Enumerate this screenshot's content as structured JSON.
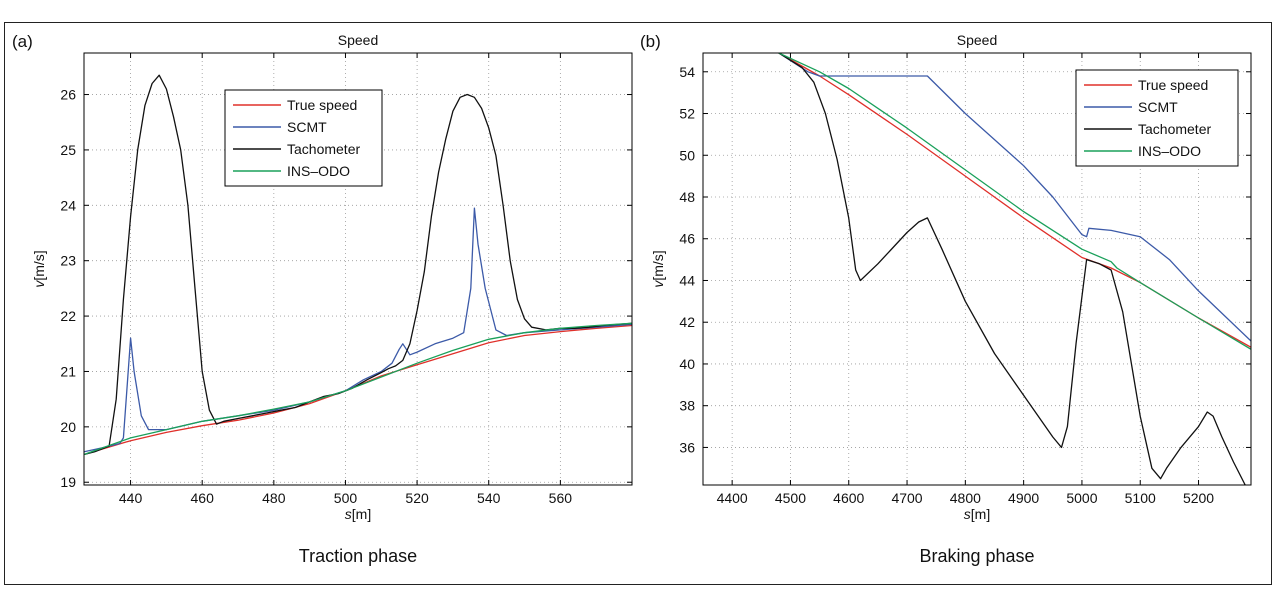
{
  "colors": {
    "true_speed": "#e0302a",
    "scmt": "#3c5aa8",
    "tachometer": "#111111",
    "ins_odo": "#1aa05a"
  },
  "chart_data": [
    {
      "type": "line",
      "panel_label": "(a)",
      "title": "Speed",
      "xlabel_var": "s",
      "xlabel_unit": "[m]",
      "ylabel_var": "v",
      "ylabel_unit": "[m/s]",
      "caption": "Traction phase",
      "xlim": [
        427,
        580
      ],
      "ylim": [
        18.95,
        26.75
      ],
      "xticks": [
        440,
        460,
        480,
        500,
        520,
        540,
        560
      ],
      "yticks": [
        19,
        20,
        21,
        22,
        23,
        24,
        25,
        26
      ],
      "grid": true,
      "legend_position": "top-center",
      "series": [
        {
          "name": "True speed",
          "color_key": "true_speed",
          "x": [
            427,
            440,
            450,
            460,
            470,
            480,
            490,
            500,
            510,
            520,
            530,
            540,
            550,
            560,
            570,
            580
          ],
          "y": [
            19.5,
            19.75,
            19.9,
            20.02,
            20.12,
            20.25,
            20.42,
            20.65,
            20.92,
            21.12,
            21.32,
            21.52,
            21.65,
            21.72,
            21.78,
            21.83
          ]
        },
        {
          "name": "SCMT",
          "color_key": "scmt",
          "x": [
            427,
            432,
            437,
            438,
            440,
            441,
            443,
            445,
            450,
            460,
            470,
            480,
            490,
            500,
            505,
            510,
            513,
            515,
            516,
            518,
            520,
            525,
            530,
            533,
            535,
            536,
            537,
            539,
            542,
            545,
            550,
            560,
            570,
            580
          ],
          "y": [
            19.55,
            19.62,
            19.7,
            19.8,
            21.6,
            21.0,
            20.2,
            19.95,
            19.95,
            20.1,
            20.2,
            20.3,
            20.45,
            20.65,
            20.85,
            21.0,
            21.15,
            21.4,
            21.5,
            21.3,
            21.35,
            21.5,
            21.6,
            21.7,
            22.5,
            23.95,
            23.3,
            22.5,
            21.75,
            21.65,
            21.7,
            21.75,
            21.8,
            21.85
          ]
        },
        {
          "name": "Tachometer",
          "color_key": "tachometer",
          "x": [
            427,
            430,
            434,
            436,
            438,
            440,
            442,
            444,
            446,
            448,
            450,
            452,
            454,
            456,
            458,
            460,
            462,
            464,
            466,
            470,
            474,
            478,
            482,
            486,
            490,
            494,
            498,
            502,
            506,
            510,
            512,
            514,
            516,
            518,
            520,
            522,
            524,
            526,
            528,
            530,
            532,
            534,
            536,
            538,
            540,
            542,
            544,
            546,
            548,
            550,
            552,
            556,
            560,
            564,
            568,
            572,
            576,
            580
          ],
          "y": [
            19.5,
            19.55,
            19.65,
            20.5,
            22.3,
            23.8,
            25.0,
            25.8,
            26.2,
            26.35,
            26.1,
            25.6,
            25.0,
            24.0,
            22.5,
            21.0,
            20.3,
            20.05,
            20.1,
            20.15,
            20.2,
            20.25,
            20.3,
            20.35,
            20.45,
            20.55,
            20.6,
            20.7,
            20.85,
            20.98,
            21.05,
            21.1,
            21.2,
            21.5,
            22.1,
            22.8,
            23.8,
            24.6,
            25.2,
            25.7,
            25.95,
            26.0,
            25.95,
            25.75,
            25.4,
            24.9,
            24.0,
            23.0,
            22.3,
            21.95,
            21.8,
            21.75,
            21.78,
            21.78,
            21.8,
            21.83,
            21.85,
            21.87
          ]
        },
        {
          "name": "INS–ODO",
          "color_key": "ins_odo",
          "x": [
            427,
            440,
            450,
            460,
            470,
            480,
            490,
            500,
            510,
            520,
            530,
            540,
            550,
            560,
            570,
            580
          ],
          "y": [
            19.5,
            19.8,
            19.95,
            20.1,
            20.2,
            20.32,
            20.45,
            20.65,
            20.9,
            21.15,
            21.38,
            21.58,
            21.7,
            21.78,
            21.83,
            21.87
          ]
        }
      ]
    },
    {
      "type": "line",
      "panel_label": "(b)",
      "title": "Speed",
      "xlabel_var": "s",
      "xlabel_unit": "[m]",
      "ylabel_var": "v",
      "ylabel_unit": "[m/s]",
      "caption": "Braking phase",
      "xlim": [
        4350,
        5290
      ],
      "ylim": [
        34.2,
        54.9
      ],
      "xticks": [
        4400,
        4500,
        4600,
        4700,
        4800,
        4900,
        5000,
        5100,
        5200
      ],
      "yticks": [
        36,
        38,
        40,
        42,
        44,
        46,
        48,
        50,
        52,
        54
      ],
      "grid": true,
      "legend_position": "top-right",
      "series": [
        {
          "name": "True speed",
          "color_key": "true_speed",
          "x": [
            4480,
            4550,
            4600,
            4700,
            4800,
            4900,
            5000,
            5050,
            5100,
            5200,
            5290
          ],
          "y": [
            54.9,
            53.8,
            52.9,
            51.0,
            49.0,
            47.0,
            45.1,
            44.6,
            43.9,
            42.2,
            40.8
          ]
        },
        {
          "name": "SCMT",
          "color_key": "scmt",
          "x": [
            4480,
            4530,
            4550,
            4735,
            4800,
            4900,
            4950,
            5000,
            5008,
            5012,
            5050,
            5100,
            5150,
            5200,
            5290
          ],
          "y": [
            54.9,
            54.0,
            53.8,
            53.8,
            52.0,
            49.5,
            48.0,
            46.2,
            46.1,
            46.5,
            46.4,
            46.1,
            45.0,
            43.5,
            41.1
          ]
        },
        {
          "name": "Tachometer",
          "color_key": "tachometer",
          "x": [
            4480,
            4520,
            4540,
            4560,
            4580,
            4600,
            4612,
            4620,
            4650,
            4700,
            4720,
            4735,
            4760,
            4800,
            4850,
            4900,
            4950,
            4965,
            4975,
            4990,
            5008,
            5030,
            5050,
            5070,
            5100,
            5120,
            5135,
            5145,
            5170,
            5200,
            5215,
            5225,
            5240,
            5260,
            5280
          ],
          "y": [
            54.9,
            54.2,
            53.5,
            52.0,
            49.8,
            47.0,
            44.5,
            44.0,
            44.8,
            46.3,
            46.8,
            47.0,
            45.5,
            43.0,
            40.5,
            38.5,
            36.5,
            36.0,
            37.0,
            41.0,
            45.0,
            44.8,
            44.5,
            42.5,
            37.5,
            35.0,
            34.5,
            35.0,
            36.0,
            37.0,
            37.7,
            37.5,
            36.5,
            35.3,
            34.2
          ]
        },
        {
          "name": "INS–ODO",
          "color_key": "ins_odo",
          "x": [
            4480,
            4550,
            4600,
            4700,
            4800,
            4900,
            5000,
            5050,
            5060,
            5100,
            5200,
            5290
          ],
          "y": [
            54.9,
            54.0,
            53.2,
            51.3,
            49.3,
            47.3,
            45.5,
            44.9,
            44.6,
            43.9,
            42.2,
            40.7
          ]
        }
      ]
    }
  ]
}
